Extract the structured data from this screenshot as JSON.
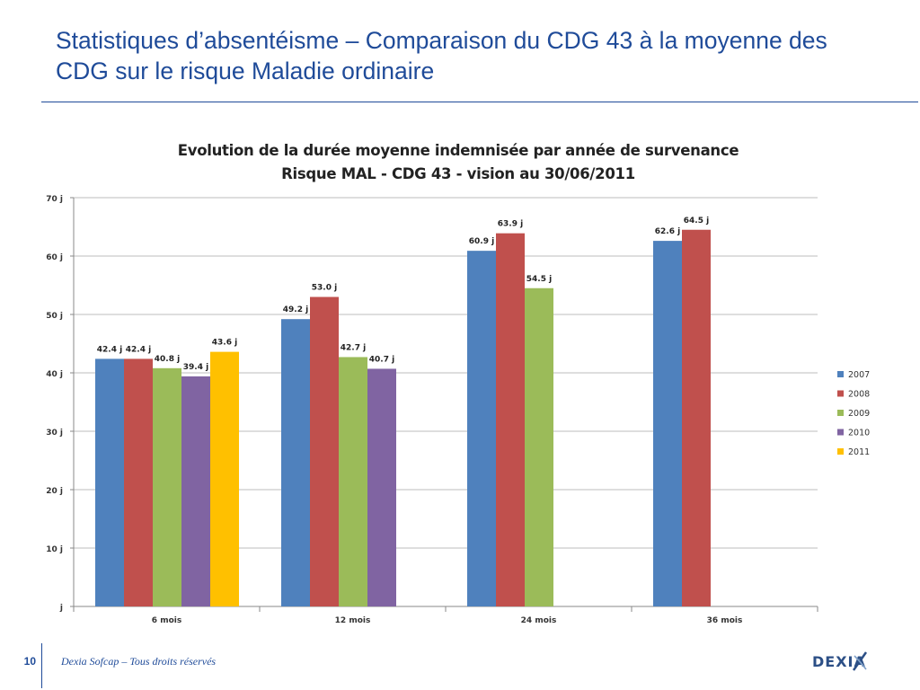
{
  "slide": {
    "title": "Statistiques d’absentéisme – Comparaison du CDG 43 à la moyenne des CDG sur le risque Maladie ordinaire",
    "page_number": "10",
    "copyright": "Dexia Sofcap – Tous droits réservés",
    "logo_text": "DEXIA"
  },
  "colors": {
    "title": "#1f4b99",
    "grid": "#bcbcbc"
  },
  "chart_data": {
    "type": "bar",
    "title_line1": "Evolution de la durée moyenne indemnisée  par année de survenance",
    "title_line2": "Risque MAL - CDG 43 - vision au 30/06/2011",
    "categories": [
      "6 mois",
      "12 mois",
      "24 mois",
      "36 mois"
    ],
    "ylim": [
      0,
      70
    ],
    "yticks": [
      0,
      10,
      20,
      30,
      40,
      50,
      60,
      70
    ],
    "ytick_labels": [
      "j",
      "10 j",
      "20 j",
      "30 j",
      "40 j",
      "50 j",
      "60 j",
      "70 j"
    ],
    "grid": true,
    "legend_position": "right",
    "series": [
      {
        "name": "2007",
        "color": "#4f81bd",
        "values": [
          42.4,
          49.2,
          60.9,
          62.6
        ],
        "labels": [
          "42.4 j",
          "49.2 j",
          "60.9 j",
          "62.6 j"
        ]
      },
      {
        "name": "2008",
        "color": "#c0504d",
        "values": [
          42.4,
          53.0,
          63.9,
          64.5
        ],
        "labels": [
          "42.4 j",
          "53.0 j",
          "63.9 j",
          "64.5 j"
        ]
      },
      {
        "name": "2009",
        "color": "#9bbb59",
        "values": [
          40.8,
          42.7,
          54.5,
          null
        ],
        "labels": [
          "40.8 j",
          "42.7 j",
          "54.5 j",
          null
        ]
      },
      {
        "name": "2010",
        "color": "#8064a2",
        "values": [
          39.4,
          40.7,
          null,
          null
        ],
        "labels": [
          "39.4 j",
          "40.7 j",
          null,
          null
        ]
      },
      {
        "name": "2011",
        "color": "#ffc000",
        "values": [
          43.6,
          null,
          null,
          null
        ],
        "labels": [
          "43.6 j",
          null,
          null,
          null
        ]
      }
    ]
  }
}
